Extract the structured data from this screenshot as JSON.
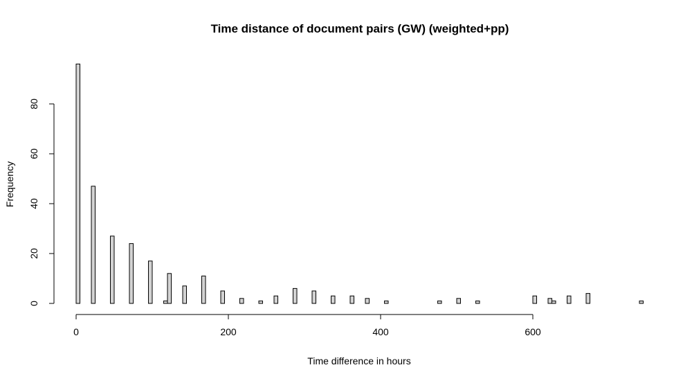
{
  "chart_data": {
    "type": "bar",
    "title": "Time distance of document pairs (GW) (weighted+pp)",
    "xlabel": "Time difference in hours",
    "ylabel": "Frequency",
    "xlim": [
      0,
      745
    ],
    "ylim": [
      0,
      96
    ],
    "x_ticks": [
      0,
      200,
      400,
      600
    ],
    "y_ticks": [
      0,
      20,
      40,
      60,
      80
    ],
    "bin_width": 5,
    "bins": [
      {
        "x0": 0,
        "value": 96
      },
      {
        "x0": 20,
        "value": 47
      },
      {
        "x0": 45,
        "value": 27
      },
      {
        "x0": 70,
        "value": 24
      },
      {
        "x0": 95,
        "value": 17
      },
      {
        "x0": 115,
        "value": 1
      },
      {
        "x0": 120,
        "value": 12
      },
      {
        "x0": 140,
        "value": 7
      },
      {
        "x0": 165,
        "value": 11
      },
      {
        "x0": 190,
        "value": 5
      },
      {
        "x0": 215,
        "value": 2
      },
      {
        "x0": 240,
        "value": 1
      },
      {
        "x0": 260,
        "value": 3
      },
      {
        "x0": 285,
        "value": 6
      },
      {
        "x0": 310,
        "value": 5
      },
      {
        "x0": 335,
        "value": 3
      },
      {
        "x0": 360,
        "value": 3
      },
      {
        "x0": 380,
        "value": 2
      },
      {
        "x0": 405,
        "value": 1
      },
      {
        "x0": 475,
        "value": 1
      },
      {
        "x0": 500,
        "value": 2
      },
      {
        "x0": 525,
        "value": 1
      },
      {
        "x0": 600,
        "value": 3
      },
      {
        "x0": 620,
        "value": 2
      },
      {
        "x0": 625,
        "value": 1
      },
      {
        "x0": 645,
        "value": 3
      },
      {
        "x0": 670,
        "value": 4
      },
      {
        "x0": 740,
        "value": 1
      }
    ]
  }
}
